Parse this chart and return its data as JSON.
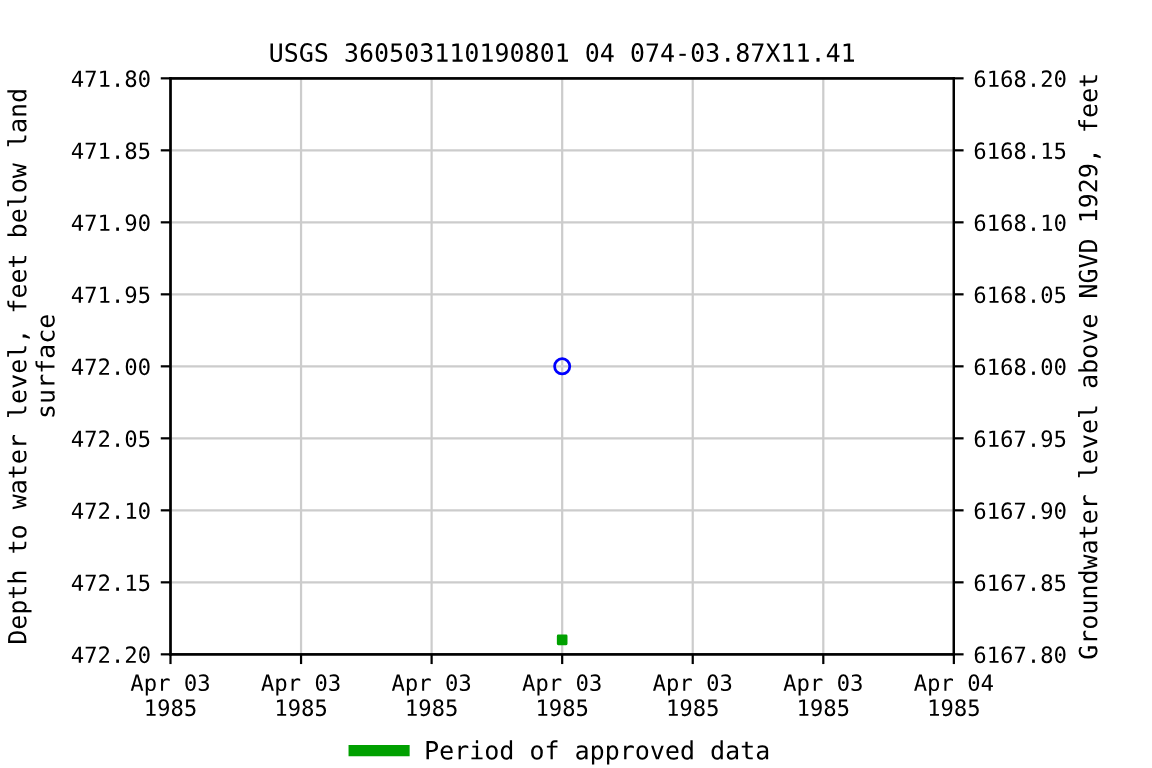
{
  "chart_data": {
    "type": "scatter",
    "title": "USGS 360503110190801 04 074-03.87X11.41",
    "ylabel": "Depth to water level, feet below land\nsurface",
    "y2label": "Groundwater level above NGVD 1929, feet",
    "xlim": [
      "1985-04-03T00:00",
      "1985-04-04T00:00"
    ],
    "xticks": [
      {
        "value": "1985-04-03T00:00",
        "label": "Apr 03\n1985"
      },
      {
        "value": "1985-04-03T04:00",
        "label": "Apr 03\n1985"
      },
      {
        "value": "1985-04-03T08:00",
        "label": "Apr 03\n1985"
      },
      {
        "value": "1985-04-03T12:00",
        "label": "Apr 03\n1985"
      },
      {
        "value": "1985-04-03T16:00",
        "label": "Apr 03\n1985"
      },
      {
        "value": "1985-04-03T20:00",
        "label": "Apr 03\n1985"
      },
      {
        "value": "1985-04-04T00:00",
        "label": "Apr 04\n1985"
      }
    ],
    "ylim": [
      472.2,
      471.8
    ],
    "yticks": [
      {
        "value": 471.8,
        "label": "471.80"
      },
      {
        "value": 471.85,
        "label": "471.85"
      },
      {
        "value": 471.9,
        "label": "471.90"
      },
      {
        "value": 471.95,
        "label": "471.95"
      },
      {
        "value": 472.0,
        "label": "472.00"
      },
      {
        "value": 472.05,
        "label": "472.05"
      },
      {
        "value": 472.1,
        "label": "472.10"
      },
      {
        "value": 472.15,
        "label": "472.15"
      },
      {
        "value": 472.2,
        "label": "472.20"
      }
    ],
    "y2lim": [
      6167.8,
      6168.2
    ],
    "y2ticks": [
      {
        "value": 6167.8,
        "label": "6167.80"
      },
      {
        "value": 6167.85,
        "label": "6167.85"
      },
      {
        "value": 6167.9,
        "label": "6167.90"
      },
      {
        "value": 6167.95,
        "label": "6167.95"
      },
      {
        "value": 6168.0,
        "label": "6168.00"
      },
      {
        "value": 6168.05,
        "label": "6168.05"
      },
      {
        "value": 6168.1,
        "label": "6168.10"
      },
      {
        "value": 6168.15,
        "label": "6168.15"
      },
      {
        "value": 6168.2,
        "label": "6168.20"
      }
    ],
    "grid": true,
    "legend": "bottom",
    "series": [
      {
        "color": "#0000ff",
        "marker": "circle",
        "x": [
          "1985-04-03T12:00"
        ],
        "values": [
          472.0
        ]
      },
      {
        "name": "Period of approved data",
        "color": "#00a000",
        "marker": "square",
        "x": [
          "1985-04-03T12:00"
        ],
        "values": [
          472.19
        ]
      }
    ]
  }
}
